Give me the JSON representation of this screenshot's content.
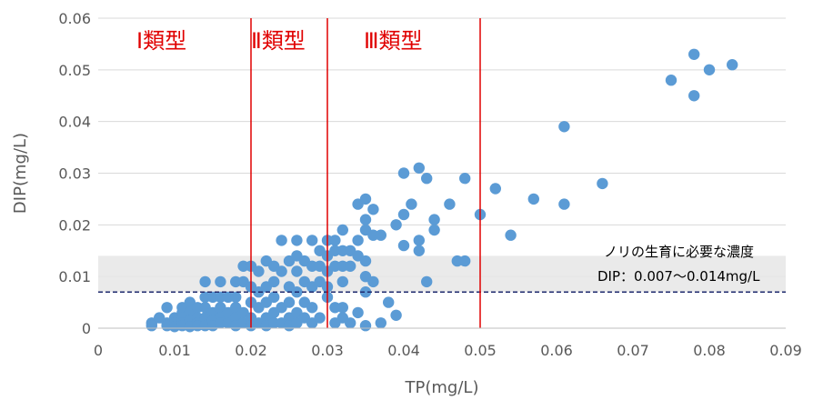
{
  "chart_data": {
    "type": "scatter",
    "xlabel": "TP(mg/L)",
    "ylabel": "DIP(mg/L)",
    "xlim": [
      0,
      0.09
    ],
    "ylim": [
      0,
      0.06
    ],
    "x_ticks": [
      "0",
      "0.01",
      "0.02",
      "0.03",
      "0.04",
      "0.05",
      "0.06",
      "0.07",
      "0.08",
      "0.09"
    ],
    "y_ticks": [
      "0",
      "0.01",
      "0.02",
      "0.03",
      "0.04",
      "0.05",
      "0.06"
    ],
    "grid": "horizontal",
    "colors": {
      "points": "#5b9bd5",
      "type_lines": "#e00000",
      "threshold_line": "#1f2a6e",
      "band": "#e6e6e6"
    },
    "type_lines": [
      {
        "x": 0.02,
        "label": "Ⅰ類型"
      },
      {
        "x": 0.03,
        "label": "Ⅱ類型"
      },
      {
        "x": 0.05,
        "label": "Ⅲ類型"
      }
    ],
    "band": {
      "y_range": [
        0.007,
        0.014
      ],
      "threshold": 0.007,
      "label_line1": "ノリの生育に必要な濃度",
      "label_line2": "DIP：0.007～0.014mg/L"
    },
    "points": [
      [
        0.007,
        0.001
      ],
      [
        0.007,
        0.0005
      ],
      [
        0.008,
        0.002
      ],
      [
        0.009,
        0.004
      ],
      [
        0.009,
        0.001
      ],
      [
        0.009,
        0.0005
      ],
      [
        0.01,
        0.002
      ],
      [
        0.01,
        0.001
      ],
      [
        0.01,
        0.0003
      ],
      [
        0.011,
        0.004
      ],
      [
        0.011,
        0.003
      ],
      [
        0.011,
        0.002
      ],
      [
        0.011,
        0.001
      ],
      [
        0.011,
        0.0005
      ],
      [
        0.012,
        0.005
      ],
      [
        0.012,
        0.003
      ],
      [
        0.012,
        0.0015
      ],
      [
        0.012,
        0.0003
      ],
      [
        0.013,
        0.004
      ],
      [
        0.013,
        0.002
      ],
      [
        0.013,
        0.001
      ],
      [
        0.013,
        0.0005
      ],
      [
        0.014,
        0.009
      ],
      [
        0.014,
        0.006
      ],
      [
        0.014,
        0.004
      ],
      [
        0.014,
        0.002
      ],
      [
        0.014,
        0.0005
      ],
      [
        0.015,
        0.006
      ],
      [
        0.015,
        0.003
      ],
      [
        0.015,
        0.0015
      ],
      [
        0.015,
        0.0005
      ],
      [
        0.016,
        0.009
      ],
      [
        0.016,
        0.006
      ],
      [
        0.016,
        0.004
      ],
      [
        0.016,
        0.002
      ],
      [
        0.016,
        0.001
      ],
      [
        0.017,
        0.006
      ],
      [
        0.017,
        0.003
      ],
      [
        0.017,
        0.001
      ],
      [
        0.018,
        0.009
      ],
      [
        0.018,
        0.006
      ],
      [
        0.018,
        0.004
      ],
      [
        0.018,
        0.002
      ],
      [
        0.018,
        0.0005
      ],
      [
        0.019,
        0.012
      ],
      [
        0.019,
        0.009
      ],
      [
        0.019,
        0.003
      ],
      [
        0.019,
        0.001
      ],
      [
        0.02,
        0.012
      ],
      [
        0.02,
        0.008
      ],
      [
        0.02,
        0.005
      ],
      [
        0.02,
        0.002
      ],
      [
        0.02,
        0.0005
      ],
      [
        0.021,
        0.011
      ],
      [
        0.021,
        0.007
      ],
      [
        0.021,
        0.004
      ],
      [
        0.021,
        0.001
      ],
      [
        0.022,
        0.013
      ],
      [
        0.022,
        0.008
      ],
      [
        0.022,
        0.005
      ],
      [
        0.022,
        0.002
      ],
      [
        0.022,
        0.0005
      ],
      [
        0.023,
        0.012
      ],
      [
        0.023,
        0.009
      ],
      [
        0.023,
        0.006
      ],
      [
        0.023,
        0.003
      ],
      [
        0.023,
        0.001
      ],
      [
        0.024,
        0.017
      ],
      [
        0.024,
        0.011
      ],
      [
        0.024,
        0.004
      ],
      [
        0.024,
        0.001
      ],
      [
        0.025,
        0.013
      ],
      [
        0.025,
        0.008
      ],
      [
        0.025,
        0.005
      ],
      [
        0.025,
        0.002
      ],
      [
        0.025,
        0.0005
      ],
      [
        0.026,
        0.017
      ],
      [
        0.026,
        0.014
      ],
      [
        0.026,
        0.011
      ],
      [
        0.026,
        0.007
      ],
      [
        0.026,
        0.003
      ],
      [
        0.026,
        0.001
      ],
      [
        0.027,
        0.013
      ],
      [
        0.027,
        0.009
      ],
      [
        0.027,
        0.005
      ],
      [
        0.027,
        0.002
      ],
      [
        0.028,
        0.017
      ],
      [
        0.028,
        0.012
      ],
      [
        0.028,
        0.008
      ],
      [
        0.028,
        0.004
      ],
      [
        0.028,
        0.001
      ],
      [
        0.029,
        0.015
      ],
      [
        0.029,
        0.012
      ],
      [
        0.029,
        0.009
      ],
      [
        0.029,
        0.002
      ],
      [
        0.03,
        0.017
      ],
      [
        0.03,
        0.014
      ],
      [
        0.03,
        0.011
      ],
      [
        0.03,
        0.008
      ],
      [
        0.03,
        0.006
      ],
      [
        0.031,
        0.017
      ],
      [
        0.031,
        0.015
      ],
      [
        0.031,
        0.012
      ],
      [
        0.031,
        0.004
      ],
      [
        0.031,
        0.001
      ],
      [
        0.032,
        0.019
      ],
      [
        0.032,
        0.015
      ],
      [
        0.032,
        0.012
      ],
      [
        0.032,
        0.009
      ],
      [
        0.032,
        0.004
      ],
      [
        0.032,
        0.002
      ],
      [
        0.033,
        0.015
      ],
      [
        0.033,
        0.012
      ],
      [
        0.033,
        0.001
      ],
      [
        0.034,
        0.024
      ],
      [
        0.034,
        0.017
      ],
      [
        0.034,
        0.014
      ],
      [
        0.034,
        0.003
      ],
      [
        0.035,
        0.025
      ],
      [
        0.035,
        0.021
      ],
      [
        0.035,
        0.019
      ],
      [
        0.035,
        0.013
      ],
      [
        0.035,
        0.01
      ],
      [
        0.035,
        0.007
      ],
      [
        0.035,
        0.0005
      ],
      [
        0.036,
        0.023
      ],
      [
        0.036,
        0.018
      ],
      [
        0.036,
        0.009
      ],
      [
        0.037,
        0.018
      ],
      [
        0.037,
        0.001
      ],
      [
        0.038,
        0.005
      ],
      [
        0.039,
        0.0025
      ],
      [
        0.039,
        0.02
      ],
      [
        0.04,
        0.03
      ],
      [
        0.04,
        0.022
      ],
      [
        0.04,
        0.016
      ],
      [
        0.041,
        0.024
      ],
      [
        0.042,
        0.031
      ],
      [
        0.042,
        0.017
      ],
      [
        0.042,
        0.015
      ],
      [
        0.043,
        0.029
      ],
      [
        0.043,
        0.009
      ],
      [
        0.044,
        0.021
      ],
      [
        0.044,
        0.019
      ],
      [
        0.046,
        0.024
      ],
      [
        0.047,
        0.013
      ],
      [
        0.048,
        0.029
      ],
      [
        0.048,
        0.013
      ],
      [
        0.05,
        0.022
      ],
      [
        0.052,
        0.027
      ],
      [
        0.054,
        0.018
      ],
      [
        0.057,
        0.025
      ],
      [
        0.061,
        0.039
      ],
      [
        0.061,
        0.024
      ],
      [
        0.066,
        0.028
      ],
      [
        0.075,
        0.048
      ],
      [
        0.078,
        0.053
      ],
      [
        0.078,
        0.045
      ],
      [
        0.08,
        0.05
      ],
      [
        0.083,
        0.051
      ]
    ]
  }
}
